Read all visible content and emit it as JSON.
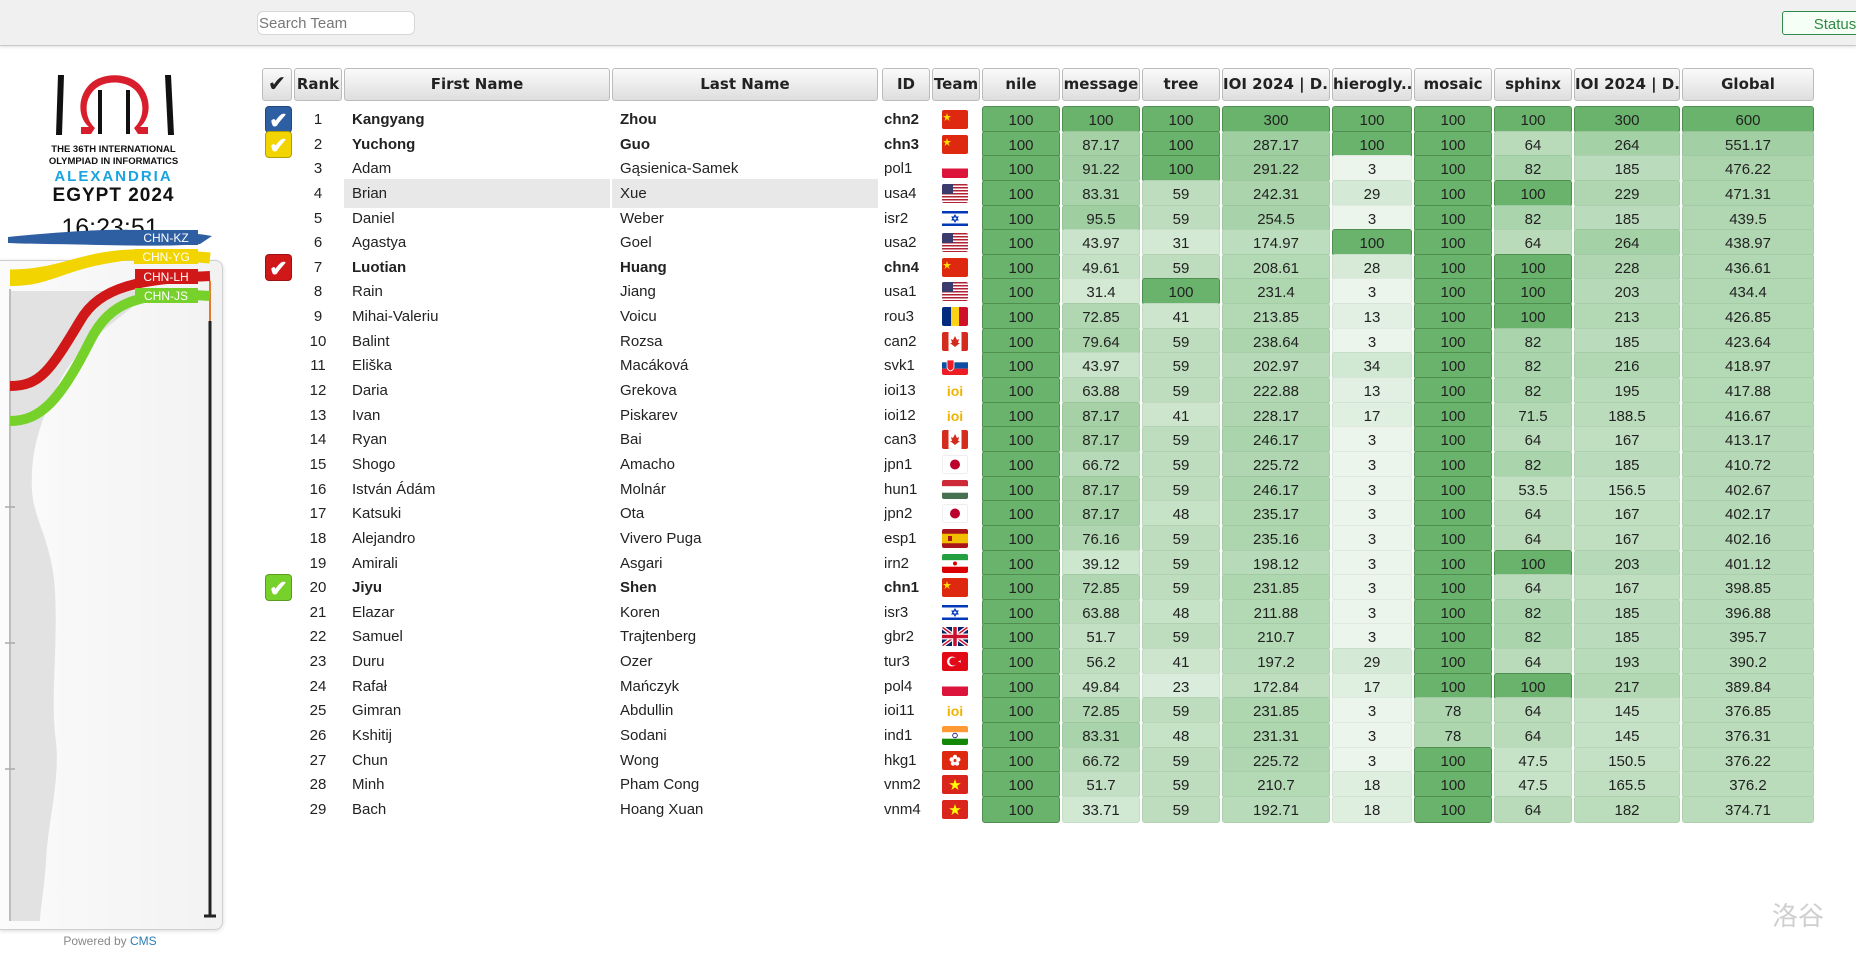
{
  "toolbar": {
    "search_placeholder": "Search Team",
    "status_label": "Status"
  },
  "sidebar": {
    "logo_line1": "THE 36TH INTERNATIONAL",
    "logo_line2": "OLYMPIAD IN INFORMATICS",
    "logo_city": "ALEXANDRIA",
    "logo_country": "EGYPT 2024",
    "clock": "16:23:51",
    "powered_prefix": "Powered by ",
    "powered_link": "CMS"
  },
  "chart_data": {
    "type": "line",
    "series": [
      {
        "name": "CHN-KZ",
        "color": "#2f5fa3"
      },
      {
        "name": "CHN-YG",
        "color": "#f2d400"
      },
      {
        "name": "CHN-LH",
        "color": "#d01818"
      },
      {
        "name": "CHN-JS",
        "color": "#76d12a"
      }
    ]
  },
  "table": {
    "columns": [
      "✔",
      "Rank",
      "First Name",
      "Last Name",
      "ID",
      "Team",
      "nile",
      "message",
      "tree",
      "IOI 2024 | D...",
      "hierogly...",
      "mosaic",
      "sphinx",
      "IOI 2024 | D...",
      "Global"
    ],
    "rows": [
      {
        "check": "blue",
        "rank": "1",
        "first": "Kangyang",
        "last": "Zhou",
        "id": "chn2",
        "flag": "cn",
        "bold": true,
        "scores": [
          "100",
          "100",
          "100",
          "300",
          "100",
          "100",
          "100",
          "300",
          "600"
        ]
      },
      {
        "check": "yellow",
        "rank": "2",
        "first": "Yuchong",
        "last": "Guo",
        "id": "chn3",
        "flag": "cn",
        "bold": true,
        "scores": [
          "100",
          "87.17",
          "100",
          "287.17",
          "100",
          "100",
          "64",
          "264",
          "551.17"
        ]
      },
      {
        "check": "",
        "rank": "3",
        "first": "Adam",
        "last": "Gąsienica-Samek",
        "id": "pol1",
        "flag": "pl",
        "bold": false,
        "scores": [
          "100",
          "91.22",
          "100",
          "291.22",
          "3",
          "100",
          "82",
          "185",
          "476.22"
        ]
      },
      {
        "check": "",
        "rank": "4",
        "first": "Brian",
        "last": "Xue",
        "id": "usa4",
        "flag": "us",
        "bold": false,
        "hl": true,
        "scores": [
          "100",
          "83.31",
          "59",
          "242.31",
          "29",
          "100",
          "100",
          "229",
          "471.31"
        ]
      },
      {
        "check": "",
        "rank": "5",
        "first": "Daniel",
        "last": "Weber",
        "id": "isr2",
        "flag": "il",
        "bold": false,
        "scores": [
          "100",
          "95.5",
          "59",
          "254.5",
          "3",
          "100",
          "82",
          "185",
          "439.5"
        ]
      },
      {
        "check": "",
        "rank": "6",
        "first": "Agastya",
        "last": "Goel",
        "id": "usa2",
        "flag": "us",
        "bold": false,
        "scores": [
          "100",
          "43.97",
          "31",
          "174.97",
          "100",
          "100",
          "64",
          "264",
          "438.97"
        ]
      },
      {
        "check": "red",
        "rank": "7",
        "first": "Luotian",
        "last": "Huang",
        "id": "chn4",
        "flag": "cn",
        "bold": true,
        "scores": [
          "100",
          "49.61",
          "59",
          "208.61",
          "28",
          "100",
          "100",
          "228",
          "436.61"
        ]
      },
      {
        "check": "",
        "rank": "8",
        "first": "Rain",
        "last": "Jiang",
        "id": "usa1",
        "flag": "us",
        "bold": false,
        "scores": [
          "100",
          "31.4",
          "100",
          "231.4",
          "3",
          "100",
          "100",
          "203",
          "434.4"
        ]
      },
      {
        "check": "",
        "rank": "9",
        "first": "Mihai-Valeriu",
        "last": "Voicu",
        "id": "rou3",
        "flag": "ro",
        "bold": false,
        "scores": [
          "100",
          "72.85",
          "41",
          "213.85",
          "13",
          "100",
          "100",
          "213",
          "426.85"
        ]
      },
      {
        "check": "",
        "rank": "10",
        "first": "Balint",
        "last": "Rozsa",
        "id": "can2",
        "flag": "ca",
        "bold": false,
        "scores": [
          "100",
          "79.64",
          "59",
          "238.64",
          "3",
          "100",
          "82",
          "185",
          "423.64"
        ]
      },
      {
        "check": "",
        "rank": "11",
        "first": "Eliška",
        "last": "Macáková",
        "id": "svk1",
        "flag": "sk",
        "bold": false,
        "scores": [
          "100",
          "43.97",
          "59",
          "202.97",
          "34",
          "100",
          "82",
          "216",
          "418.97"
        ]
      },
      {
        "check": "",
        "rank": "12",
        "first": "Daria",
        "last": "Grekova",
        "id": "ioi13",
        "flag": "ioi",
        "bold": false,
        "scores": [
          "100",
          "63.88",
          "59",
          "222.88",
          "13",
          "100",
          "82",
          "195",
          "417.88"
        ]
      },
      {
        "check": "",
        "rank": "13",
        "first": "Ivan",
        "last": "Piskarev",
        "id": "ioi12",
        "flag": "ioi",
        "bold": false,
        "scores": [
          "100",
          "87.17",
          "41",
          "228.17",
          "17",
          "100",
          "71.5",
          "188.5",
          "416.67"
        ]
      },
      {
        "check": "",
        "rank": "14",
        "first": "Ryan",
        "last": "Bai",
        "id": "can3",
        "flag": "ca",
        "bold": false,
        "scores": [
          "100",
          "87.17",
          "59",
          "246.17",
          "3",
          "100",
          "64",
          "167",
          "413.17"
        ]
      },
      {
        "check": "",
        "rank": "15",
        "first": "Shogo",
        "last": "Amacho",
        "id": "jpn1",
        "flag": "jp",
        "bold": false,
        "scores": [
          "100",
          "66.72",
          "59",
          "225.72",
          "3",
          "100",
          "82",
          "185",
          "410.72"
        ]
      },
      {
        "check": "",
        "rank": "16",
        "first": "István Ádám",
        "last": "Molnár",
        "id": "hun1",
        "flag": "hu",
        "bold": false,
        "scores": [
          "100",
          "87.17",
          "59",
          "246.17",
          "3",
          "100",
          "53.5",
          "156.5",
          "402.67"
        ]
      },
      {
        "check": "",
        "rank": "17",
        "first": "Katsuki",
        "last": "Ota",
        "id": "jpn2",
        "flag": "jp",
        "bold": false,
        "scores": [
          "100",
          "87.17",
          "48",
          "235.17",
          "3",
          "100",
          "64",
          "167",
          "402.17"
        ]
      },
      {
        "check": "",
        "rank": "18",
        "first": "Alejandro",
        "last": "Vivero Puga",
        "id": "esp1",
        "flag": "es",
        "bold": false,
        "scores": [
          "100",
          "76.16",
          "59",
          "235.16",
          "3",
          "100",
          "64",
          "167",
          "402.16"
        ]
      },
      {
        "check": "",
        "rank": "19",
        "first": "Amirali",
        "last": "Asgari",
        "id": "irn2",
        "flag": "ir",
        "bold": false,
        "scores": [
          "100",
          "39.12",
          "59",
          "198.12",
          "3",
          "100",
          "100",
          "203",
          "401.12"
        ]
      },
      {
        "check": "green",
        "rank": "20",
        "first": "Jiyu",
        "last": "Shen",
        "id": "chn1",
        "flag": "cn",
        "bold": true,
        "scores": [
          "100",
          "72.85",
          "59",
          "231.85",
          "3",
          "100",
          "64",
          "167",
          "398.85"
        ]
      },
      {
        "check": "",
        "rank": "21",
        "first": "Elazar",
        "last": "Koren",
        "id": "isr3",
        "flag": "il",
        "bold": false,
        "scores": [
          "100",
          "63.88",
          "48",
          "211.88",
          "3",
          "100",
          "82",
          "185",
          "396.88"
        ]
      },
      {
        "check": "",
        "rank": "22",
        "first": "Samuel",
        "last": "Trajtenberg",
        "id": "gbr2",
        "flag": "gb",
        "bold": false,
        "scores": [
          "100",
          "51.7",
          "59",
          "210.7",
          "3",
          "100",
          "82",
          "185",
          "395.7"
        ]
      },
      {
        "check": "",
        "rank": "23",
        "first": "Duru",
        "last": "Ozer",
        "id": "tur3",
        "flag": "tr",
        "bold": false,
        "scores": [
          "100",
          "56.2",
          "41",
          "197.2",
          "29",
          "100",
          "64",
          "193",
          "390.2"
        ]
      },
      {
        "check": "",
        "rank": "24",
        "first": "Rafał",
        "last": "Mańczyk",
        "id": "pol4",
        "flag": "pl",
        "bold": false,
        "scores": [
          "100",
          "49.84",
          "23",
          "172.84",
          "17",
          "100",
          "100",
          "217",
          "389.84"
        ]
      },
      {
        "check": "",
        "rank": "25",
        "first": "Gimran",
        "last": "Abdullin",
        "id": "ioi11",
        "flag": "ioi",
        "bold": false,
        "scores": [
          "100",
          "72.85",
          "59",
          "231.85",
          "3",
          "78",
          "64",
          "145",
          "376.85"
        ]
      },
      {
        "check": "",
        "rank": "26",
        "first": "Kshitij",
        "last": "Sodani",
        "id": "ind1",
        "flag": "in",
        "bold": false,
        "scores": [
          "100",
          "83.31",
          "48",
          "231.31",
          "3",
          "78",
          "64",
          "145",
          "376.31"
        ]
      },
      {
        "check": "",
        "rank": "27",
        "first": "Chun",
        "last": "Wong",
        "id": "hkg1",
        "flag": "hk",
        "bold": false,
        "scores": [
          "100",
          "66.72",
          "59",
          "225.72",
          "3",
          "100",
          "47.5",
          "150.5",
          "376.22"
        ]
      },
      {
        "check": "",
        "rank": "28",
        "first": "Minh",
        "last": "Pham Cong",
        "id": "vnm2",
        "flag": "vn",
        "bold": false,
        "scores": [
          "100",
          "51.7",
          "59",
          "210.7",
          "18",
          "100",
          "47.5",
          "165.5",
          "376.2"
        ]
      },
      {
        "check": "",
        "rank": "29",
        "first": "Bach",
        "last": "Hoang Xuan",
        "id": "vnm4",
        "flag": "vn",
        "bold": false,
        "scores": [
          "100",
          "33.71",
          "59",
          "192.71",
          "18",
          "100",
          "64",
          "182",
          "374.71"
        ]
      }
    ]
  },
  "score_max": [
    100,
    100,
    100,
    300,
    100,
    100,
    100,
    300,
    600
  ],
  "watermark": "洛谷"
}
